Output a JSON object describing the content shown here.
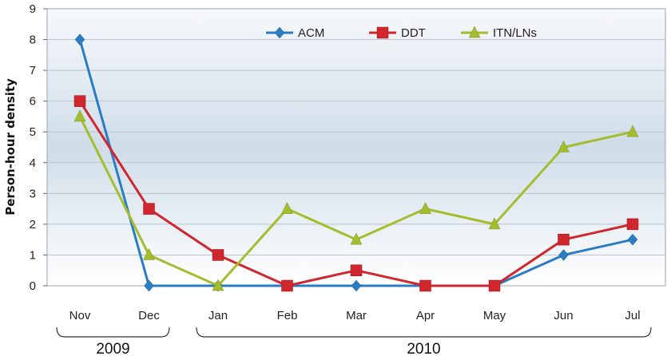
{
  "chart_data": {
    "type": "line",
    "title": "",
    "xlabel": "",
    "ylabel": "Person-hour density",
    "categories": [
      "Nov",
      "Dec",
      "Jan",
      "Feb",
      "Mar",
      "Apr",
      "May",
      "Jun",
      "Jul"
    ],
    "ylim": [
      0,
      9
    ],
    "yticks": [
      0,
      1,
      2,
      3,
      4,
      5,
      6,
      7,
      8,
      9
    ],
    "grid": true,
    "legend_position": "top-center",
    "series": [
      {
        "name": "ACM",
        "marker": "diamond",
        "color": "#2a7dc2",
        "values": [
          8,
          0,
          0,
          0,
          0,
          0,
          0,
          1,
          1.5
        ]
      },
      {
        "name": "DDT",
        "marker": "square",
        "color": "#d0262d",
        "values": [
          6,
          2.5,
          1,
          0,
          0.5,
          0,
          0,
          1.5,
          2
        ]
      },
      {
        "name": "ITN/LNs",
        "marker": "triangle",
        "color": "#a3bd2f",
        "values": [
          5.5,
          1,
          0,
          2.5,
          1.5,
          2.5,
          2,
          4.5,
          5
        ]
      }
    ],
    "year_groups": [
      {
        "label": "2009",
        "from": "Nov",
        "to": "Dec"
      },
      {
        "label": "2010",
        "from": "Jan",
        "to": "Jul"
      }
    ]
  }
}
